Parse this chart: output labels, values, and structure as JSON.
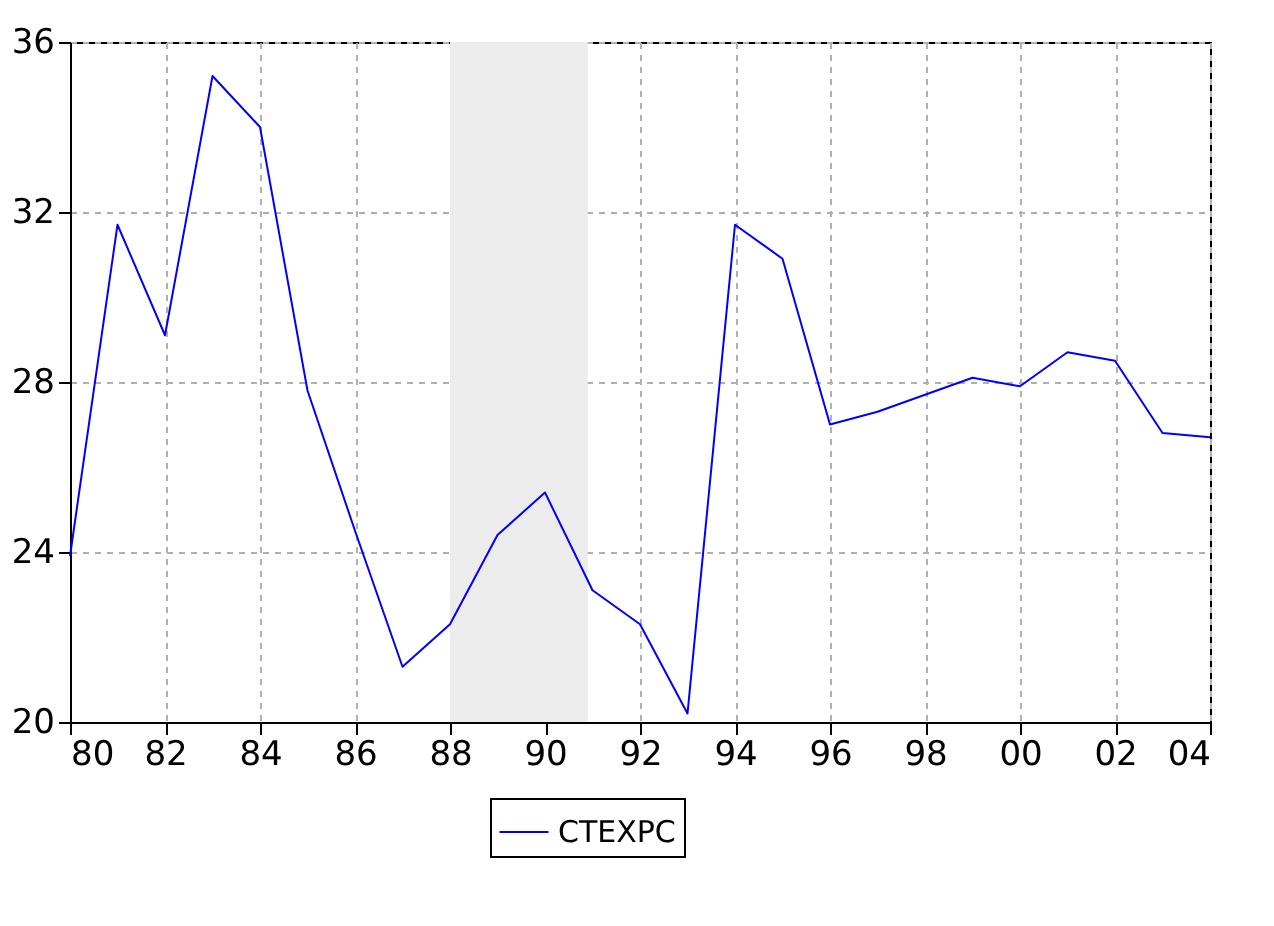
{
  "chart_data": {
    "type": "line",
    "x": [
      1980,
      1981,
      1982,
      1983,
      1984,
      1985,
      1986,
      1987,
      1988,
      1989,
      1990,
      1991,
      1992,
      1993,
      1994,
      1995,
      1996,
      1997,
      1998,
      1999,
      2000,
      2001,
      2002,
      2003,
      2004
    ],
    "series": [
      {
        "name": "CTEXPC",
        "color": "#0000ff",
        "values": [
          23.9,
          31.7,
          29.1,
          35.2,
          34.0,
          27.8,
          24.5,
          21.3,
          22.3,
          24.4,
          25.4,
          23.1,
          22.3,
          20.2,
          31.7,
          30.9,
          27.0,
          27.3,
          27.7,
          28.1,
          27.9,
          28.7,
          28.5,
          26.8,
          26.7
        ]
      }
    ],
    "xlim": [
      1980,
      2004
    ],
    "xticks": [
      {
        "value": 1980,
        "label": "80"
      },
      {
        "value": 1982,
        "label": "82"
      },
      {
        "value": 1984,
        "label": "84"
      },
      {
        "value": 1986,
        "label": "86"
      },
      {
        "value": 1988,
        "label": "88"
      },
      {
        "value": 1990,
        "label": "90"
      },
      {
        "value": 1992,
        "label": "92"
      },
      {
        "value": 1994,
        "label": "94"
      },
      {
        "value": 1996,
        "label": "96"
      },
      {
        "value": 1998,
        "label": "98"
      },
      {
        "value": 2000,
        "label": "00"
      },
      {
        "value": 2002,
        "label": "02"
      },
      {
        "value": 2004,
        "label": "04"
      }
    ],
    "ylim": [
      20,
      36
    ],
    "yticks": [
      20,
      24,
      28,
      32,
      36
    ],
    "bands": [
      {
        "axis": "x",
        "from": 1988,
        "to": 1990.9,
        "color": "#ececec"
      }
    ],
    "grid": true,
    "legend": "bottom",
    "line_style": "solid",
    "marker": "none"
  }
}
